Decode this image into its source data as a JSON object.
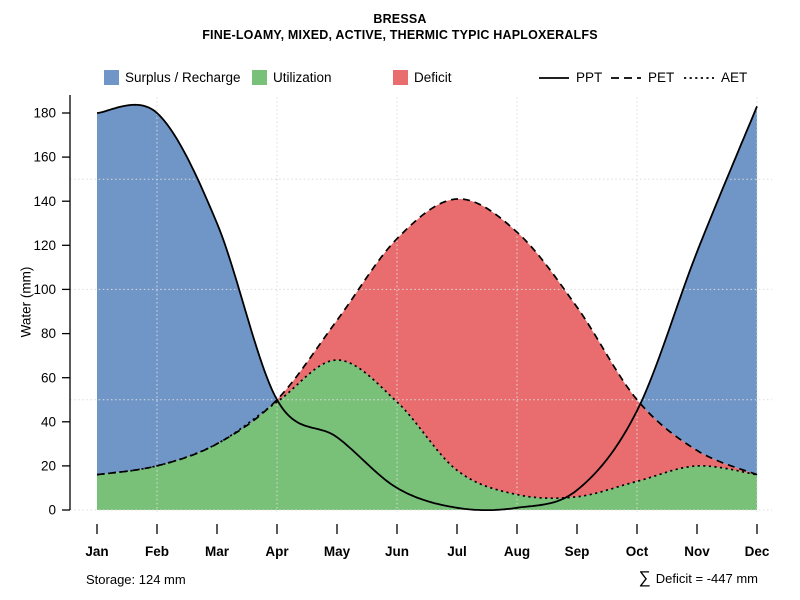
{
  "title": "BRESSA",
  "subtitle": "FINE-LOAMY, MIXED, ACTIVE, THERMIC TYPIC HAPLOXERALFS",
  "legend": {
    "fills": [
      {
        "label": "Surplus / Recharge",
        "color": "#7096c7"
      },
      {
        "label": "Utilization",
        "color": "#79c079"
      },
      {
        "label": "Deficit",
        "color": "#e96d6e"
      }
    ],
    "lines": [
      {
        "label": "PPT",
        "style": "solid"
      },
      {
        "label": "PET",
        "style": "dashed"
      },
      {
        "label": "AET",
        "style": "dotted"
      }
    ]
  },
  "chart_data": {
    "type": "area",
    "title": "BRESSA",
    "subtitle": "FINE-LOAMY, MIXED, ACTIVE, THERMIC TYPIC HAPLOXERALFS",
    "categories": [
      "Jan",
      "Feb",
      "Mar",
      "Apr",
      "May",
      "Jun",
      "Jul",
      "Aug",
      "Sep",
      "Oct",
      "Nov",
      "Dec"
    ],
    "series": [
      {
        "name": "PPT",
        "style": "solid",
        "values": [
          180,
          180,
          130,
          50,
          33,
          10,
          1,
          1,
          9,
          45,
          117,
          183
        ]
      },
      {
        "name": "PET",
        "style": "dashed",
        "values": [
          16,
          20,
          30,
          50,
          86,
          123,
          141,
          126,
          92,
          50,
          27,
          16
        ]
      },
      {
        "name": "AET",
        "style": "dotted",
        "values": [
          16,
          20,
          30,
          49,
          68,
          49,
          18,
          7,
          6,
          13,
          20,
          16
        ]
      }
    ],
    "regions": [
      {
        "name": "Surplus / Recharge",
        "between": [
          "PET",
          "PPT"
        ],
        "color": "#7096c7"
      },
      {
        "name": "Utilization",
        "between": [
          "zero",
          "AET"
        ],
        "color": "#79c079"
      },
      {
        "name": "Deficit",
        "between": [
          "AET",
          "PET"
        ],
        "color": "#e96d6e"
      }
    ],
    "xlabel": "",
    "ylabel": "Water (mm)",
    "ylim": [
      0,
      187
    ],
    "y_ticks": [
      0,
      20,
      40,
      60,
      80,
      100,
      120,
      140,
      160,
      180
    ],
    "grid": {
      "style": "dotted",
      "h_values": [
        0,
        50,
        100,
        150
      ],
      "v_months": [
        "Feb",
        "Apr",
        "Jun",
        "Aug",
        "Oct",
        "Dec"
      ],
      "color": "#dcdcdc"
    },
    "legend_position": "top"
  },
  "footer": {
    "storage": "Storage: 124 mm",
    "deficit_symbol": "∑",
    "deficit_text": "Deficit = -447 mm"
  }
}
